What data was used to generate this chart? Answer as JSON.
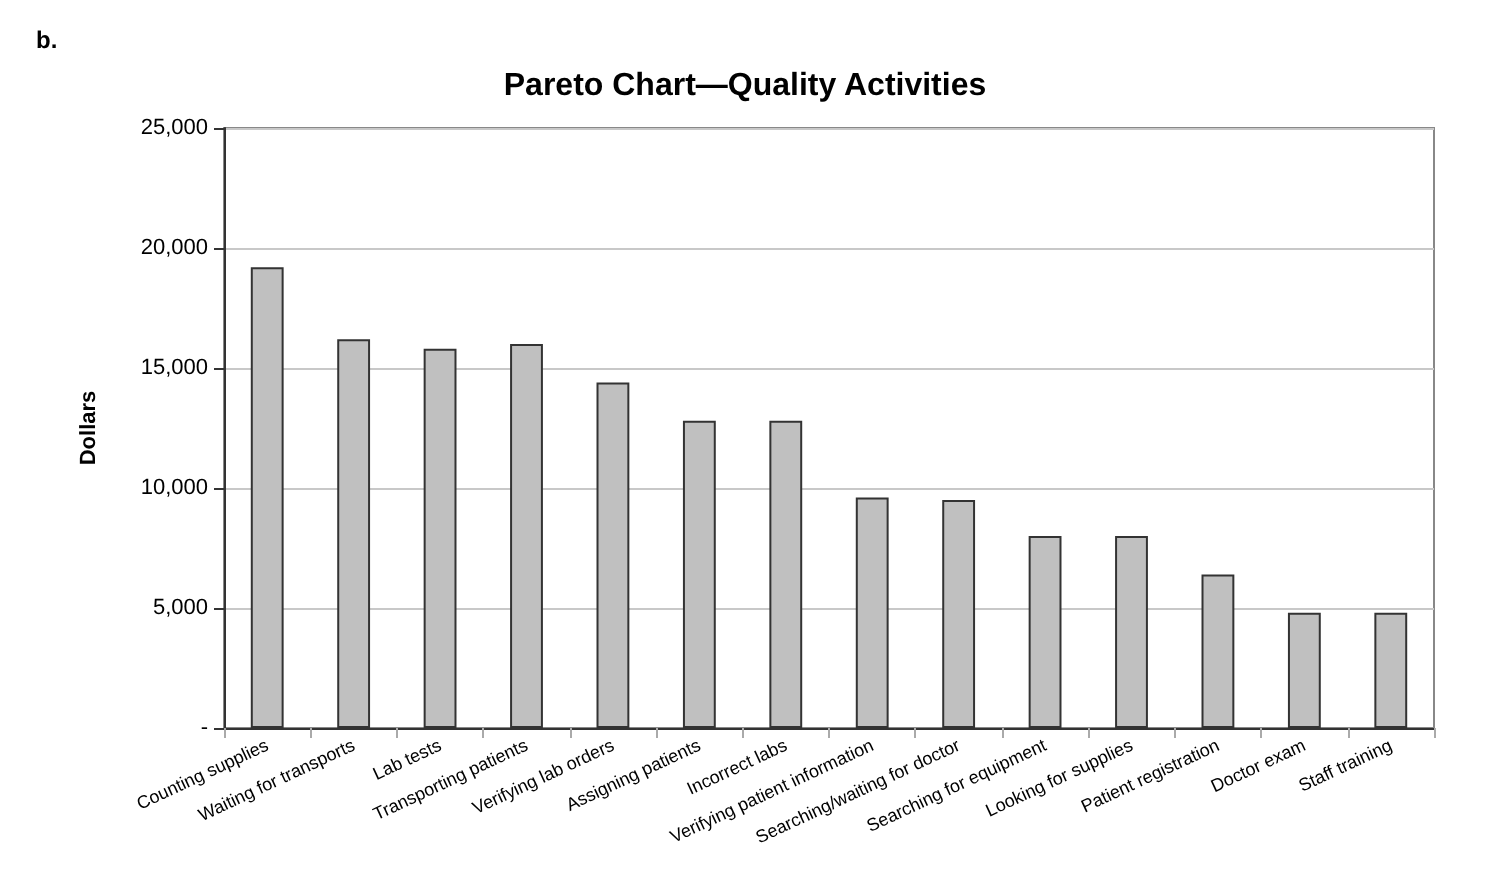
{
  "chart_data": {
    "type": "bar",
    "title": "Pareto Chart—Quality Activities",
    "ylabel": "Dollars",
    "annotations": [
      "b."
    ],
    "categories": [
      "Counting supplies",
      "Waiting for transports",
      "Lab tests",
      "Transporting patients",
      "Verifying lab orders",
      "Assigning patients",
      "Incorrect labs",
      "Verifying patient information",
      "Searching/waiting for doctor",
      "Searching for equipment",
      "Looking for supplies",
      "Patient registration",
      "Doctor exam",
      "Staff training"
    ],
    "values": [
      19200,
      16200,
      15800,
      16000,
      14400,
      12800,
      12800,
      9600,
      9500,
      8000,
      8000,
      6400,
      4800,
      4800
    ],
    "color": "#c0c0c0",
    "ylim": [
      0,
      25000
    ],
    "yticks": [
      {
        "value": 0,
        "label": "-"
      },
      {
        "value": 5000,
        "label": "5,000"
      },
      {
        "value": 10000,
        "label": "10,000"
      },
      {
        "value": 15000,
        "label": "15,000"
      },
      {
        "value": 20000,
        "label": "20,000"
      },
      {
        "value": 25000,
        "label": "25,000"
      }
    ],
    "grid": "y"
  }
}
